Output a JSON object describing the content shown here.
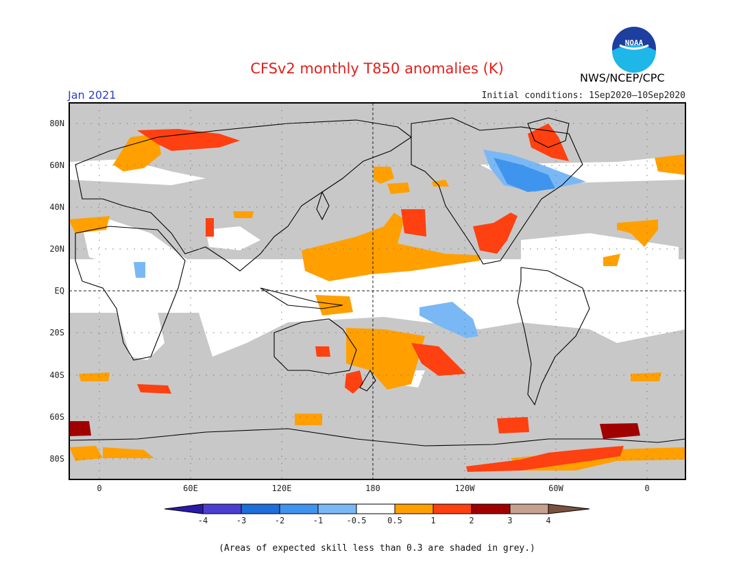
{
  "header": {
    "title": "CFSv2 monthly T850 anomalies (K)",
    "target_month": "Jan 2021",
    "initial_conditions": "Initial conditions: 1Sep2020–10Sep2020",
    "agency": "NWS/NCEP/CPC",
    "logo_text": "NOAA"
  },
  "map": {
    "lat_labels": [
      "80N",
      "60N",
      "40N",
      "20N",
      "EQ",
      "20S",
      "40S",
      "60S",
      "80S"
    ],
    "lon_labels": [
      "0",
      "60E",
      "120E",
      "180",
      "120W",
      "60W",
      "0"
    ],
    "skill_mask_color": "#c8c8c8"
  },
  "legend": {
    "tick_labels": [
      "-4",
      "-3",
      "-2",
      "-1",
      "-0.5",
      "0.5",
      "1",
      "2",
      "3",
      "4"
    ],
    "colors": [
      "#2a1aa8",
      "#4a3fd0",
      "#1e6fd9",
      "#3f94ee",
      "#7ab8f5",
      "#ffffff",
      "#ffa000",
      "#ff4010",
      "#a00000",
      "#c8a090",
      "#7a5040"
    ]
  },
  "footnote": "(Areas of expected skill less than 0.3 are shaded in grey.)"
}
